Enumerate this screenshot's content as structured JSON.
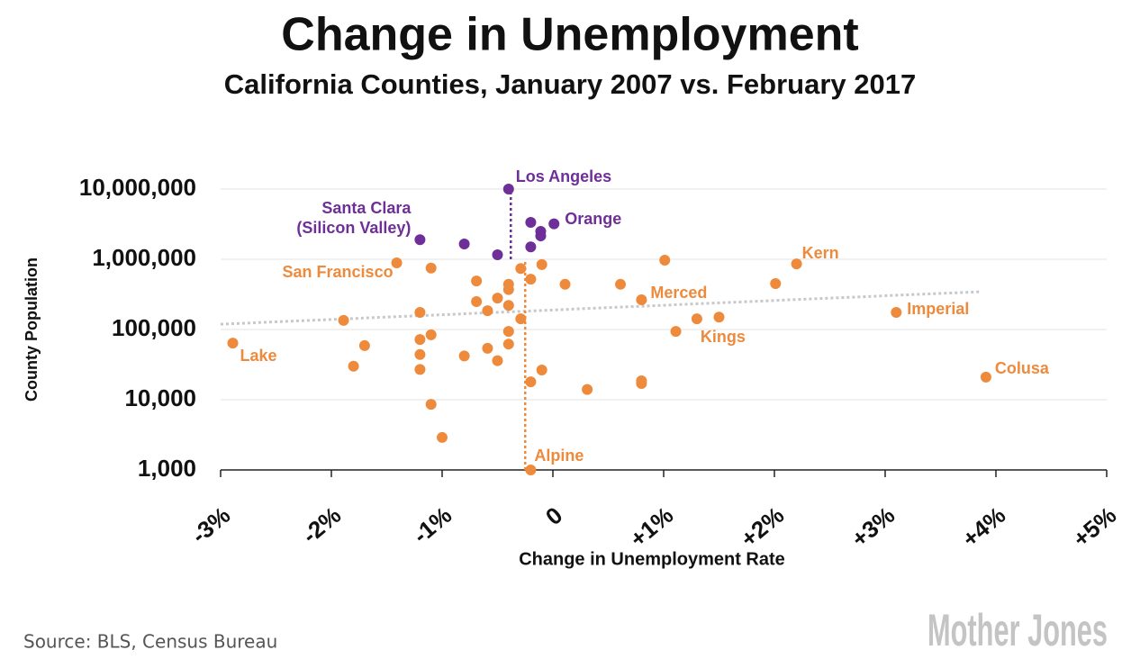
{
  "chart_data": {
    "type": "scatter",
    "title": "Change in Unemployment",
    "subtitle": "California Counties, January 2007 vs. February 2017",
    "x_label": "Change in Unemployment Rate",
    "y_label": "County Population",
    "source": "Source: BLS, Census Bureau",
    "logo": "Mother Jones",
    "xlim": [
      -3,
      5
    ],
    "xticks": [
      {
        "value": -3,
        "label": "-3%"
      },
      {
        "value": -2,
        "label": "-2%"
      },
      {
        "value": -1,
        "label": "-1%"
      },
      0,
      {
        "value": 1,
        "label": "+1%"
      },
      {
        "value": 2,
        "label": "+2%"
      },
      {
        "value": 3,
        "label": "+3%"
      },
      {
        "value": 4,
        "label": "+4%"
      },
      {
        "value": 5,
        "label": "+5%"
      }
    ],
    "ylim": [
      1000,
      10000000
    ],
    "yticks": [
      {
        "value": 1000,
        "label": "1,000"
      },
      {
        "value": 10000,
        "label": "10,000"
      },
      {
        "value": 100000,
        "label": "100,000"
      },
      {
        "value": 1000000,
        "label": "1,000,000"
      },
      {
        "value": 10000000,
        "label": "10,000,000"
      }
    ],
    "y_scale": "log",
    "grid": true,
    "series": [
      {
        "color": "#6f2f98",
        "x": [
          -0.4,
          -1.2,
          -0.8,
          -0.5,
          -0.2,
          -0.11,
          -0.11,
          0.01,
          -0.2
        ],
        "values": [
          10000000,
          1900000,
          1650000,
          1160000,
          3360000,
          2500000,
          2150000,
          3200000,
          1500000
        ],
        "labels": [
          "Los Angeles",
          "Santa Clara\n(Silicon Valley)",
          null,
          null,
          null,
          null,
          null,
          "Orange",
          null
        ]
      },
      {
        "color": "#ee8a3c",
        "x": [
          -2.89,
          -1.89,
          -1.7,
          -1.8,
          -1.41,
          -1.1,
          -1.2,
          -1.2,
          -1.1,
          -1.2,
          -1.2,
          -1.1,
          -1.0,
          -0.69,
          -0.69,
          -0.59,
          -0.5,
          -0.4,
          -0.4,
          -0.4,
          -0.29,
          -0.2,
          -0.1,
          0.11,
          -0.29,
          -0.4,
          -0.4,
          -0.59,
          -0.8,
          -0.5,
          -0.1,
          -0.2,
          -0.2,
          0.31,
          0.61,
          0.8,
          1.01,
          0.8,
          0.8,
          1.11,
          1.3,
          1.5,
          2.01,
          2.2,
          3.1,
          3.91
        ],
        "values": [
          64000,
          135000,
          59000,
          30000,
          890000,
          750000,
          175000,
          72000,
          84000,
          44000,
          27000,
          8600,
          2900,
          490000,
          250000,
          185000,
          280000,
          440000,
          370000,
          220000,
          740000,
          520000,
          840000,
          440000,
          142000,
          94000,
          62000,
          54000,
          42000,
          36000,
          26500,
          18000,
          1000,
          14000,
          440000,
          265000,
          970000,
          18600,
          17000,
          94000,
          142000,
          150000,
          450000,
          860000,
          175000,
          21000
        ],
        "labels": [
          "Lake",
          null,
          null,
          null,
          "San Francisco",
          null,
          null,
          null,
          null,
          null,
          null,
          null,
          null,
          null,
          null,
          null,
          null,
          null,
          null,
          null,
          null,
          null,
          null,
          null,
          null,
          null,
          null,
          null,
          null,
          null,
          null,
          null,
          "Alpine",
          null,
          null,
          "Merced",
          null,
          null,
          null,
          null,
          "Kings",
          null,
          null,
          "Kern",
          "Imperial",
          "Colusa"
        ]
      }
    ],
    "trendline": {
      "color": "#c8c8c8",
      "x": [
        -3,
        3.87
      ],
      "values": [
        119000,
        346000
      ]
    },
    "reference_lines": [
      {
        "color": "#6f2f98",
        "x": -0.38,
        "values": [
          1000000,
          10000000
        ]
      },
      {
        "color": "#ee8a3c",
        "x": -0.25,
        "values": [
          1000,
          1000000
        ]
      }
    ]
  }
}
